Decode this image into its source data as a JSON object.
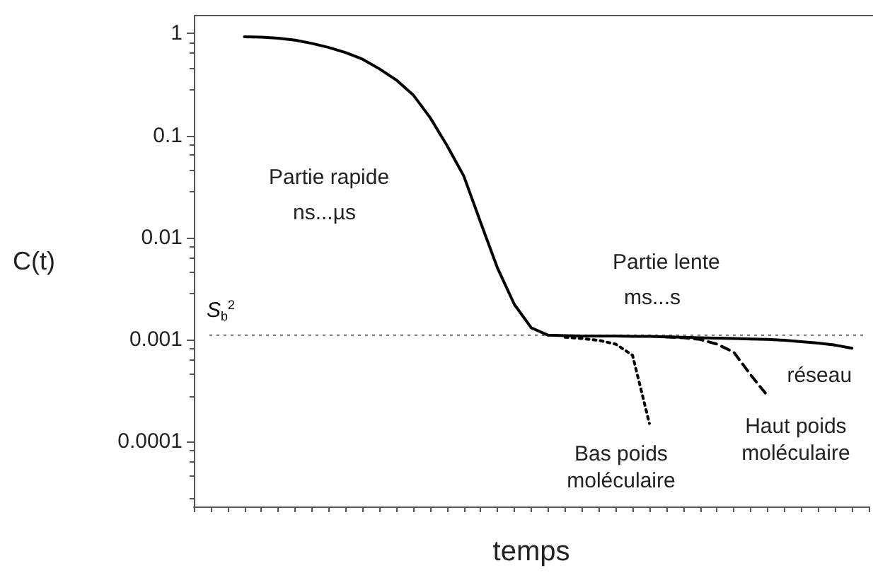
{
  "chart_data": {
    "type": "line",
    "xlabel": "temps",
    "ylabel": "C(t)",
    "categories": [
      null,
      null,
      null,
      null,
      null,
      null,
      null,
      null,
      null,
      null,
      null,
      null,
      null,
      null,
      null,
      null,
      null,
      null,
      null,
      null,
      null,
      null,
      null,
      null,
      null,
      null,
      null,
      null,
      null,
      null,
      null,
      null,
      null,
      null,
      null,
      null,
      null,
      null,
      null,
      null,
      null
    ],
    "series": [
      {
        "name": "réseau",
        "color": "#000000",
        "line_style": "solid",
        "values": [
          null,
          null,
          null,
          0.93,
          0.92,
          0.9,
          0.86,
          0.8,
          0.73,
          0.65,
          0.56,
          0.45,
          0.35,
          0.25,
          0.15,
          0.08,
          0.04,
          0.014,
          0.005,
          0.0022,
          0.0013,
          0.0011,
          0.00109,
          0.00108,
          0.00108,
          0.00108,
          0.00107,
          0.00107,
          0.00106,
          0.00105,
          0.00104,
          0.00103,
          0.00102,
          0.00101,
          0.001,
          0.00098,
          0.00095,
          0.00092,
          0.00088,
          0.00082,
          null
        ]
      },
      {
        "name": "Bas poids moléculaire",
        "color": "#000000",
        "line_style": "dotted",
        "values": [
          null,
          null,
          null,
          null,
          null,
          null,
          null,
          null,
          null,
          null,
          null,
          null,
          null,
          null,
          null,
          null,
          null,
          null,
          null,
          null,
          null,
          null,
          0.00105,
          0.00102,
          0.00098,
          0.0009,
          0.0007,
          0.00015,
          null,
          null,
          null,
          null,
          null,
          null,
          null,
          null,
          null,
          null,
          null,
          null,
          null
        ]
      },
      {
        "name": "Haut poids moléculaire",
        "color": "#000000",
        "line_style": "dashed",
        "values": [
          null,
          null,
          null,
          null,
          null,
          null,
          null,
          null,
          null,
          null,
          null,
          null,
          null,
          null,
          null,
          null,
          null,
          null,
          null,
          null,
          null,
          null,
          null,
          null,
          null,
          null,
          null,
          null,
          0.00106,
          0.00104,
          0.001,
          0.0009,
          0.00075,
          0.00045,
          0.00028,
          null,
          null,
          null,
          null,
          null,
          null
        ]
      }
    ],
    "log": "y",
    "ylim": [
      2.3e-05,
      1.5
    ],
    "yticks": [
      1,
      0.1,
      0.01,
      0.001,
      0.0001
    ],
    "ref_lines": [
      {
        "axis": "y",
        "value": 0.0011,
        "label": "S$_{b}$$^{2}$",
        "color": "#808080",
        "line_style": "dotted"
      }
    ],
    "annotations": [
      "Partie rapide",
      "ns...µs",
      "Partie lente",
      "ms...s"
    ],
    "grid": false,
    "legend": false,
    "marker": "none"
  }
}
